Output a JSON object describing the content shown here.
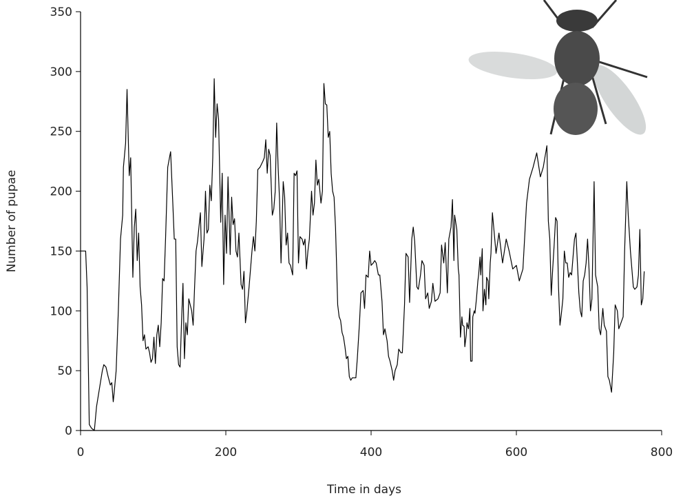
{
  "chart_data": {
    "type": "line",
    "xlabel": "Time in days",
    "ylabel": "Number of pupae",
    "color": "#000000",
    "xlim": [
      0,
      800
    ],
    "xticks": [
      0,
      200,
      400,
      600,
      800
    ],
    "ylim": [
      0,
      350
    ],
    "yticks": [
      0,
      50,
      100,
      150,
      200,
      250,
      300,
      350
    ],
    "grid": false,
    "x": [
      0,
      7,
      9,
      12,
      15,
      19,
      22,
      26,
      30,
      32,
      35,
      38,
      41,
      43,
      45,
      46,
      49,
      52,
      55,
      58,
      59,
      62,
      64,
      67,
      69,
      72,
      74,
      76,
      78,
      80,
      82,
      84,
      86,
      88,
      90,
      93,
      95,
      97,
      99,
      101,
      103,
      105,
      107,
      109,
      111,
      113,
      115,
      117,
      120,
      123,
      124,
      127,
      129,
      131,
      133,
      135,
      137,
      139,
      141,
      143,
      145,
      147,
      149,
      151,
      153,
      155,
      157,
      159,
      161,
      163,
      165,
      167,
      170,
      172,
      174,
      176,
      178,
      180,
      182,
      184,
      186,
      188,
      190,
      193,
      195,
      197,
      199,
      201,
      203,
      206,
      208,
      210,
      212,
      214,
      216,
      218,
      221,
      223,
      225,
      227,
      229,
      232,
      236,
      238,
      240,
      242,
      244,
      247,
      251,
      253,
      255,
      257,
      259,
      261,
      264,
      266,
      268,
      270,
      272,
      274,
      276,
      279,
      281,
      283,
      285,
      287,
      289,
      292,
      294,
      296,
      298,
      300,
      302,
      305,
      307,
      309,
      311,
      313,
      315,
      318,
      320,
      322,
      324,
      326,
      328,
      331,
      333,
      335,
      337,
      339,
      341,
      343,
      345,
      347,
      349,
      351,
      354,
      356,
      358,
      360,
      362,
      364,
      366,
      368,
      370,
      372,
      374,
      379,
      381,
      384,
      386,
      389,
      391,
      393,
      396,
      398,
      400,
      403,
      405,
      407,
      410,
      412,
      415,
      417,
      419,
      422,
      424,
      426,
      429,
      431,
      433,
      436,
      438,
      441,
      443,
      446,
      448,
      451,
      453,
      456,
      458,
      460,
      463,
      465,
      468,
      470,
      473,
      475,
      478,
      480,
      483,
      485,
      488,
      492,
      495,
      497,
      500,
      502,
      505,
      507,
      510,
      512,
      514,
      515,
      517,
      518,
      520,
      521,
      523,
      525,
      526,
      528,
      529,
      531,
      532,
      534,
      536,
      537,
      539,
      540,
      542,
      543,
      545,
      547,
      548,
      550,
      551,
      553,
      554,
      556,
      558,
      559,
      561,
      562,
      564,
      565,
      567,
      572,
      576,
      581,
      586,
      590,
      595,
      600,
      604,
      609,
      614,
      618,
      623,
      628,
      633,
      637,
      642,
      644,
      646,
      648,
      650,
      652,
      654,
      656,
      658,
      660,
      662,
      664,
      666,
      668,
      670,
      672,
      674,
      676,
      678,
      680,
      682,
      684,
      686,
      688,
      690,
      692,
      694,
      696,
      698,
      700,
      702,
      704,
      707,
      709,
      712,
      714,
      716,
      719,
      721,
      724,
      726,
      728,
      731,
      734,
      736,
      739,
      741,
      744,
      747,
      749,
      752,
      754,
      757,
      759,
      761,
      763,
      766,
      768,
      770,
      772,
      774,
      776
    ],
    "values": [
      150,
      150,
      120,
      5,
      2,
      0,
      20,
      35,
      50,
      55,
      53,
      45,
      38,
      40,
      24,
      30,
      50,
      100,
      160,
      180,
      220,
      240,
      285,
      213,
      228,
      128,
      170,
      185,
      142,
      165,
      120,
      105,
      75,
      80,
      68,
      70,
      65,
      57,
      60,
      78,
      56,
      80,
      88,
      70,
      90,
      127,
      125,
      160,
      220,
      230,
      233,
      190,
      160,
      160,
      70,
      55,
      53,
      90,
      123,
      60,
      90,
      80,
      110,
      105,
      100,
      88,
      120,
      150,
      158,
      170,
      182,
      137,
      160,
      200,
      165,
      168,
      205,
      192,
      228,
      294,
      245,
      273,
      260,
      174,
      215,
      122,
      180,
      148,
      212,
      147,
      195,
      172,
      177,
      150,
      145,
      165,
      122,
      118,
      133,
      90,
      100,
      120,
      150,
      162,
      150,
      175,
      218,
      220,
      225,
      228,
      243,
      215,
      235,
      230,
      180,
      185,
      200,
      257,
      220,
      192,
      140,
      208,
      195,
      155,
      165,
      140,
      138,
      130,
      215,
      213,
      217,
      140,
      162,
      160,
      155,
      160,
      135,
      150,
      160,
      200,
      180,
      190,
      226,
      205,
      210,
      190,
      200,
      290,
      273,
      272,
      245,
      250,
      215,
      200,
      195,
      170,
      105,
      95,
      92,
      82,
      78,
      70,
      60,
      62,
      45,
      42,
      44,
      44,
      60,
      90,
      115,
      117,
      102,
      130,
      128,
      150,
      138,
      140,
      142,
      140,
      130,
      130,
      108,
      80,
      85,
      75,
      62,
      58,
      50,
      42,
      50,
      55,
      68,
      65,
      65,
      105,
      148,
      145,
      107,
      160,
      170,
      158,
      120,
      118,
      130,
      142,
      138,
      110,
      115,
      102,
      108,
      123,
      108,
      110,
      115,
      155,
      140,
      157,
      115,
      160,
      170,
      193,
      142,
      180,
      172,
      168,
      135,
      130,
      78,
      95,
      88,
      87,
      70,
      80,
      90,
      85,
      102,
      58,
      58,
      95,
      100,
      98,
      110,
      125,
      130,
      145,
      130,
      152,
      100,
      118,
      105,
      128,
      125,
      110,
      140,
      148,
      182,
      148,
      165,
      140,
      160,
      150,
      135,
      138,
      125,
      135,
      190,
      210,
      220,
      232,
      212,
      220,
      238,
      175,
      160,
      113,
      135,
      155,
      178,
      175,
      120,
      88,
      98,
      110,
      150,
      140,
      140,
      128,
      132,
      130,
      145,
      160,
      165,
      140,
      115,
      100,
      95,
      125,
      130,
      140,
      160,
      135,
      100,
      110,
      208,
      130,
      120,
      85,
      80,
      102,
      88,
      83,
      45,
      42,
      32,
      65,
      105,
      100,
      85,
      90,
      95,
      150,
      208,
      180,
      150,
      135,
      120,
      118,
      120,
      130,
      168,
      105,
      110,
      133
    ]
  }
}
